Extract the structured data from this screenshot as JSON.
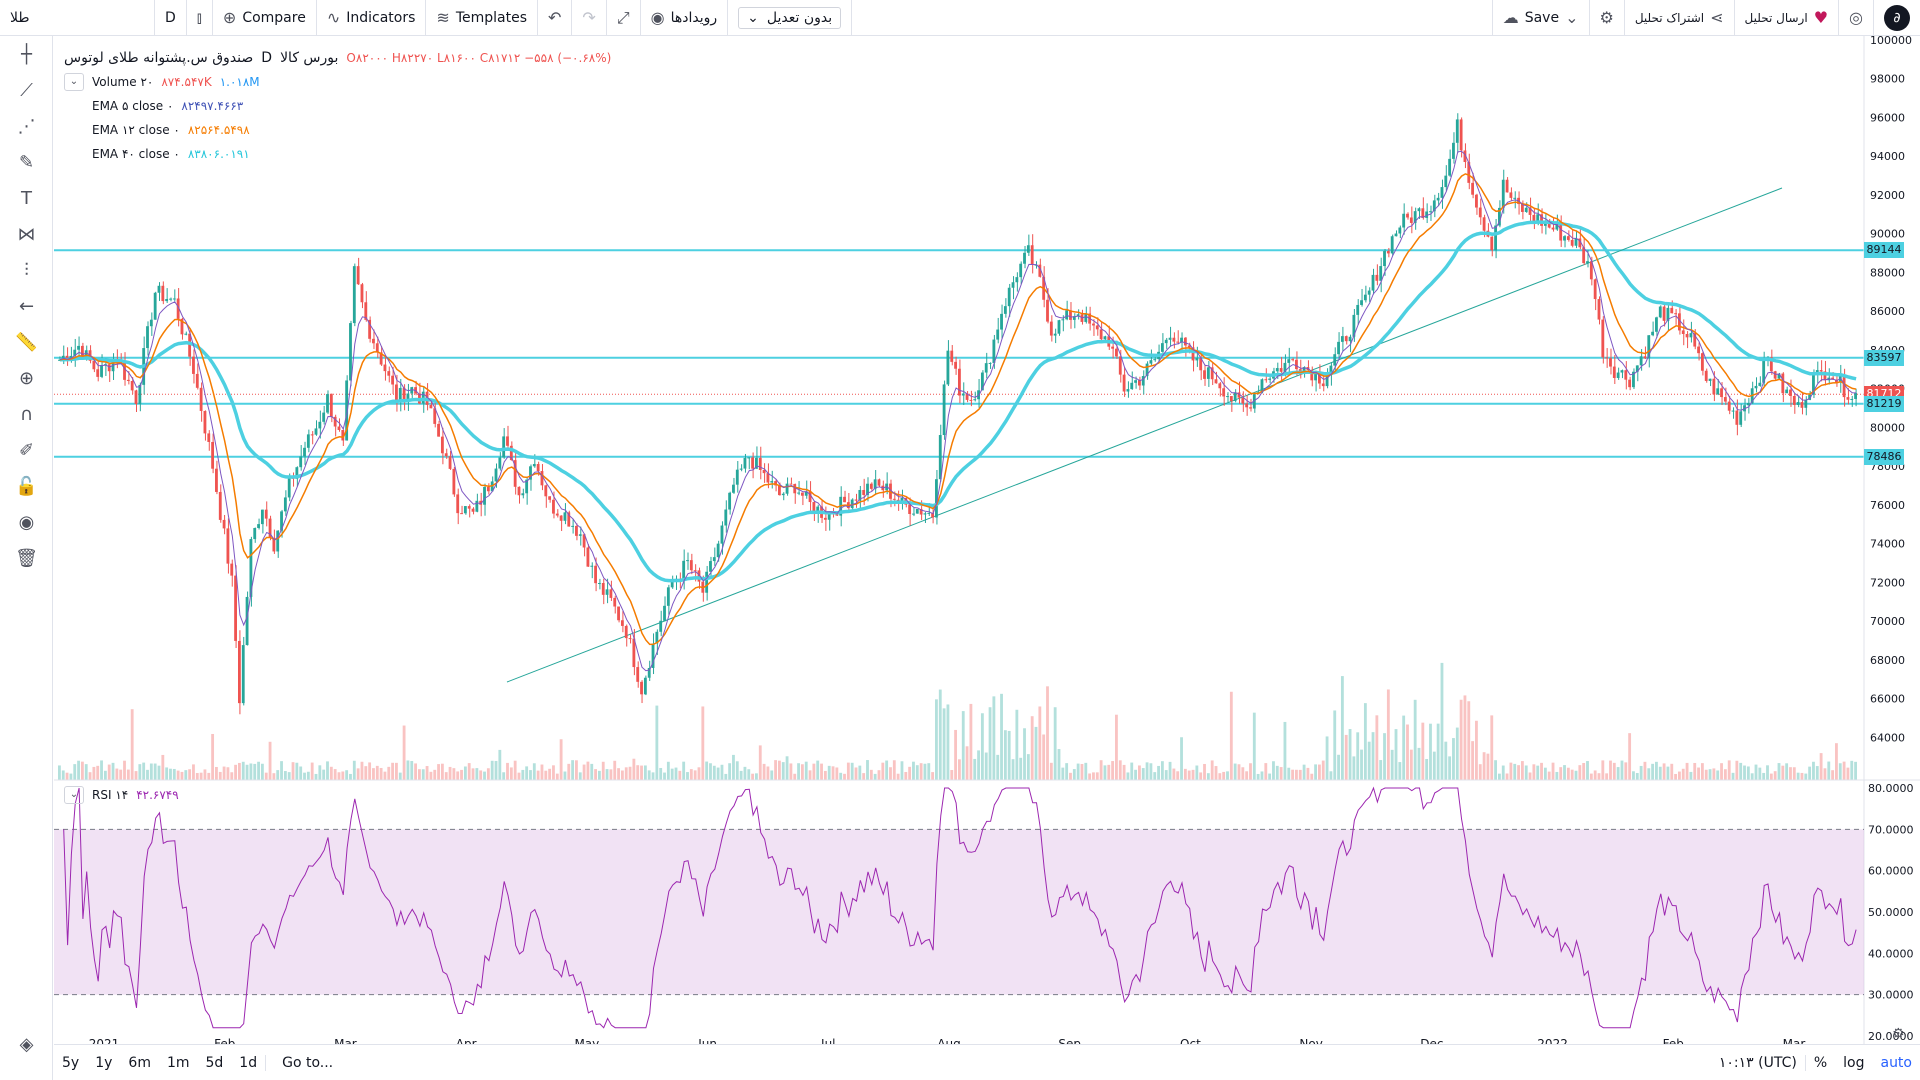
{
  "topbar": {
    "symbol": "طلا",
    "interval": "D",
    "compare": "Compare",
    "indicators": "Indicators",
    "templates": "Templates",
    "events": "رویدادها",
    "adjustment": "بدون تعدیل",
    "save": "Save",
    "share": "اشتراک تحلیل",
    "publish": "ارسال تحلیل"
  },
  "legend": {
    "symbol_name": "صندوق س.پشتوانه طلای لوتوس",
    "interval": "D",
    "exchange": "بورس کالا",
    "ohlc": "O۸۲۰۰۰ H۸۲۲۷۰ L۸۱۶۰۰ C۸۱۷۱۲ −۵۵۸ (−۰.۶۸%)",
    "volume_label": "Volume ۲۰",
    "volume_values": [
      "۸۷۴.۵۴۷K",
      "۱.۰۱۸M"
    ],
    "ema5_label": "EMA ۵ close ۰",
    "ema5_value": "۸۲۴۹۷.۴۶۶۳",
    "ema12_label": "EMA ۱۲ close ۰",
    "ema12_value": "۸۲۵۶۴.۵۴۹۸",
    "ema40_label": "EMA ۴۰ close ۰",
    "ema40_value": "۸۳۸۰۶.۰۱۹۱"
  },
  "rsi": {
    "label": "RSI ۱۴",
    "value": "۴۲.۶۷۴۹",
    "levels": [
      30,
      70
    ],
    "axis_labels": [
      "80.0000",
      "70.0000",
      "60.0000",
      "50.0000",
      "40.0000",
      "30.0000",
      "20.0000"
    ]
  },
  "bottombar": {
    "ranges": [
      "5y",
      "1y",
      "6m",
      "1m",
      "5d",
      "1d"
    ],
    "goto": "Go to...",
    "time": "۱۰:۱۳ (UTC)",
    "percent": "%",
    "log": "log",
    "auto": "auto"
  },
  "colors": {
    "up": "#26a69a",
    "down": "#ef5350",
    "ema5": "#7e57c2",
    "ema12": "#f57c00",
    "ema40": "#4dd0e1",
    "rsi": "#9c27b0",
    "hline": "#4dd0e1"
  },
  "chart_data": {
    "type": "candlestick",
    "y_axis_labels": [
      "100000",
      "98000",
      "96000",
      "94000",
      "92000",
      "90000",
      "88000",
      "86000",
      "84000",
      "82000",
      "80000",
      "78000",
      "76000",
      "74000",
      "72000",
      "70000",
      "68000",
      "66000",
      "64000"
    ],
    "ylim": [
      62000,
      100000
    ],
    "x_axis_labels": [
      "2021",
      "Feb",
      "Mar",
      "Apr",
      "May",
      "Jun",
      "Jul",
      "Aug",
      "Sep",
      "Oct",
      "Nov",
      "Dec",
      "2022",
      "Feb",
      "Mar"
    ],
    "price_lines": [
      {
        "label": "89144",
        "value": 89144
      },
      {
        "label": "83597",
        "value": 83597
      },
      {
        "label": "81712",
        "value": 81712,
        "last": true
      },
      {
        "label": "81219",
        "value": 81219
      },
      {
        "label": "78486",
        "value": 78486
      }
    ],
    "close_path": [
      [
        0,
        83500
      ],
      [
        5,
        84200
      ],
      [
        10,
        82800
      ],
      [
        15,
        83600
      ],
      [
        20,
        81500
      ],
      [
        25,
        87000
      ],
      [
        30,
        86500
      ],
      [
        35,
        83000
      ],
      [
        40,
        78000
      ],
      [
        45,
        72000
      ],
      [
        47,
        66000
      ],
      [
        50,
        74000
      ],
      [
        53,
        76000
      ],
      [
        56,
        74000
      ],
      [
        60,
        77000
      ],
      [
        64,
        79000
      ],
      [
        67,
        80000
      ],
      [
        70,
        81500
      ],
      [
        74,
        79000
      ],
      [
        77,
        88000
      ],
      [
        80,
        85500
      ],
      [
        84,
        83500
      ],
      [
        88,
        81500
      ],
      [
        92,
        82000
      ],
      [
        96,
        81200
      ],
      [
        100,
        79000
      ],
      [
        104,
        76000
      ],
      [
        108,
        75500
      ],
      [
        112,
        77000
      ],
      [
        116,
        79500
      ],
      [
        120,
        76500
      ],
      [
        124,
        78500
      ],
      [
        128,
        76000
      ],
      [
        132,
        75500
      ],
      [
        136,
        74500
      ],
      [
        140,
        72000
      ],
      [
        144,
        71000
      ],
      [
        148,
        69500
      ],
      [
        152,
        66500
      ],
      [
        156,
        69500
      ],
      [
        160,
        72000
      ],
      [
        164,
        73000
      ],
      [
        168,
        71500
      ],
      [
        172,
        74000
      ],
      [
        176,
        77000
      ],
      [
        180,
        78500
      ],
      [
        184,
        77500
      ],
      [
        188,
        76500
      ],
      [
        192,
        77000
      ],
      [
        196,
        76000
      ],
      [
        200,
        75500
      ],
      [
        204,
        76000
      ],
      [
        208,
        76500
      ],
      [
        212,
        77000
      ],
      [
        216,
        76800
      ],
      [
        220,
        76000
      ],
      [
        224,
        75800
      ],
      [
        228,
        75500
      ],
      [
        230,
        80000
      ],
      [
        232,
        84000
      ],
      [
        235,
        82000
      ],
      [
        238,
        81500
      ],
      [
        242,
        83000
      ],
      [
        246,
        86000
      ],
      [
        250,
        88000
      ],
      [
        253,
        89000
      ],
      [
        256,
        87500
      ],
      [
        259,
        85000
      ],
      [
        262,
        85500
      ],
      [
        266,
        86000
      ],
      [
        270,
        85000
      ],
      [
        274,
        84500
      ],
      [
        278,
        82000
      ],
      [
        282,
        82500
      ],
      [
        286,
        83500
      ],
      [
        290,
        85000
      ],
      [
        294,
        84000
      ],
      [
        298,
        83000
      ],
      [
        302,
        82500
      ],
      [
        306,
        81500
      ],
      [
        310,
        81000
      ],
      [
        314,
        82500
      ],
      [
        318,
        83000
      ],
      [
        322,
        83500
      ],
      [
        326,
        83000
      ],
      [
        330,
        82500
      ],
      [
        334,
        84000
      ],
      [
        338,
        85500
      ],
      [
        342,
        87000
      ],
      [
        346,
        89000
      ],
      [
        350,
        90500
      ],
      [
        354,
        91000
      ],
      [
        358,
        91500
      ],
      [
        362,
        93000
      ],
      [
        365,
        95500
      ],
      [
        368,
        93000
      ],
      [
        371,
        91000
      ],
      [
        374,
        89500
      ],
      [
        377,
        92500
      ],
      [
        380,
        91500
      ],
      [
        384,
        91000
      ],
      [
        388,
        90500
      ],
      [
        392,
        90000
      ],
      [
        396,
        89500
      ],
      [
        400,
        88000
      ],
      [
        403,
        84000
      ],
      [
        406,
        83000
      ],
      [
        410,
        82500
      ],
      [
        414,
        84000
      ],
      [
        418,
        86000
      ],
      [
        422,
        85500
      ],
      [
        426,
        84500
      ],
      [
        430,
        82500
      ],
      [
        434,
        81500
      ],
      [
        438,
        80500
      ],
      [
        442,
        82000
      ],
      [
        446,
        83500
      ],
      [
        450,
        82000
      ],
      [
        454,
        81000
      ],
      [
        458,
        82500
      ],
      [
        462,
        83000
      ],
      [
        466,
        82000
      ],
      [
        468,
        81712
      ]
    ]
  }
}
